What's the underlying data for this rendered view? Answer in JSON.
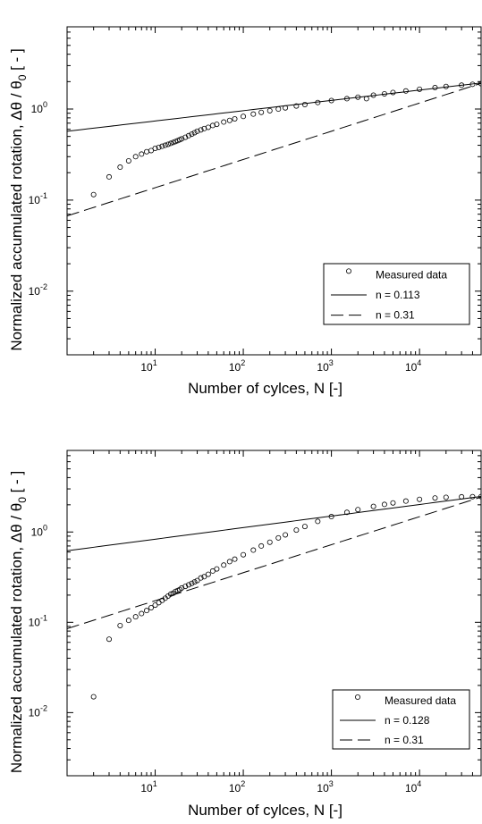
{
  "chart_data": [
    {
      "type": "scatter",
      "xlabel": "Number of cylces, N [-]",
      "ylabel": "Normalized accumulated rotation, Δθ / θ",
      "ylabel_subscript": "0",
      "ylabel_suffix": " [ - ]",
      "xscale": "log",
      "yscale": "log",
      "xlim": [
        1,
        50000
      ],
      "ylim": [
        0.002,
        8
      ],
      "grid": false,
      "legend_position": "bottom-right",
      "x_ticks": [
        {
          "value": 10,
          "base": "10",
          "exp": "1"
        },
        {
          "value": 100,
          "base": "10",
          "exp": "2"
        },
        {
          "value": 1000,
          "base": "10",
          "exp": "3"
        },
        {
          "value": 10000,
          "base": "10",
          "exp": "4"
        }
      ],
      "y_ticks": [
        {
          "value": 0.01,
          "base": "10",
          "exp": "-2"
        },
        {
          "value": 0.1,
          "base": "10",
          "exp": "-1"
        },
        {
          "value": 1,
          "base": "10",
          "exp": "0"
        }
      ],
      "series": [
        {
          "name": "Measured data",
          "kind": "markers",
          "x": [
            2,
            3,
            4,
            5,
            6,
            7,
            8,
            9,
            10,
            11,
            12,
            13,
            14,
            15,
            16,
            17,
            18,
            19,
            20,
            22,
            24,
            26,
            28,
            30,
            33,
            36,
            40,
            45,
            50,
            60,
            70,
            80,
            100,
            130,
            160,
            200,
            250,
            300,
            400,
            500,
            700,
            1000,
            1500,
            2000,
            2500,
            3000,
            4000,
            5000,
            7000,
            10000,
            15000,
            20000,
            30000,
            40000,
            50000
          ],
          "y": [
            0.115,
            0.18,
            0.23,
            0.27,
            0.3,
            0.32,
            0.34,
            0.35,
            0.37,
            0.38,
            0.39,
            0.4,
            0.41,
            0.42,
            0.43,
            0.44,
            0.45,
            0.46,
            0.47,
            0.49,
            0.51,
            0.53,
            0.55,
            0.57,
            0.59,
            0.61,
            0.63,
            0.66,
            0.68,
            0.72,
            0.75,
            0.78,
            0.83,
            0.88,
            0.92,
            0.96,
            1.0,
            1.03,
            1.08,
            1.12,
            1.18,
            1.24,
            1.3,
            1.35,
            1.3,
            1.42,
            1.47,
            1.52,
            1.58,
            1.65,
            1.72,
            1.77,
            1.83,
            1.87,
            1.9
          ]
        },
        {
          "name": "n = 0.113",
          "kind": "solid",
          "a": 0.57,
          "n": 0.113
        },
        {
          "name": "n = 0.31",
          "kind": "dashed",
          "a": 0.067,
          "n": 0.31
        }
      ]
    },
    {
      "type": "scatter",
      "xlabel": "Number of cylces, N [-]",
      "ylabel": "Normalized accumulated rotation, Δθ / θ",
      "ylabel_subscript": "0",
      "ylabel_suffix": " [ - ]",
      "xscale": "log",
      "yscale": "log",
      "xlim": [
        1,
        50000
      ],
      "ylim": [
        0.002,
        8
      ],
      "grid": false,
      "legend_position": "bottom-right",
      "x_ticks": [
        {
          "value": 10,
          "base": "10",
          "exp": "1"
        },
        {
          "value": 100,
          "base": "10",
          "exp": "2"
        },
        {
          "value": 1000,
          "base": "10",
          "exp": "3"
        },
        {
          "value": 10000,
          "base": "10",
          "exp": "4"
        }
      ],
      "y_ticks": [
        {
          "value": 0.01,
          "base": "10",
          "exp": "-2"
        },
        {
          "value": 0.1,
          "base": "10",
          "exp": "-1"
        },
        {
          "value": 1,
          "base": "10",
          "exp": "0"
        }
      ],
      "series": [
        {
          "name": "Measured data",
          "kind": "markers",
          "x": [
            2,
            3,
            4,
            5,
            6,
            7,
            8,
            9,
            10,
            11,
            12,
            13,
            14,
            15,
            16,
            17,
            18,
            19,
            20,
            22,
            24,
            26,
            28,
            30,
            33,
            36,
            40,
            45,
            50,
            60,
            70,
            80,
            100,
            130,
            160,
            200,
            250,
            300,
            400,
            500,
            700,
            1000,
            1500,
            2000,
            3000,
            4000,
            5000,
            7000,
            10000,
            15000,
            20000,
            30000,
            40000,
            50000
          ],
          "y": [
            0.015,
            0.065,
            0.092,
            0.105,
            0.115,
            0.125,
            0.135,
            0.145,
            0.155,
            0.165,
            0.175,
            0.185,
            0.195,
            0.205,
            0.21,
            0.22,
            0.225,
            0.23,
            0.24,
            0.25,
            0.26,
            0.27,
            0.28,
            0.29,
            0.31,
            0.32,
            0.34,
            0.37,
            0.39,
            0.43,
            0.47,
            0.5,
            0.56,
            0.63,
            0.7,
            0.77,
            0.86,
            0.93,
            1.05,
            1.15,
            1.31,
            1.48,
            1.65,
            1.77,
            1.92,
            2.02,
            2.1,
            2.2,
            2.3,
            2.38,
            2.42,
            2.45,
            2.46,
            2.47
          ]
        },
        {
          "name": "n = 0.128",
          "kind": "solid",
          "a": 0.62,
          "n": 0.128
        },
        {
          "name": "n = 0.31",
          "kind": "dashed",
          "a": 0.085,
          "n": 0.31
        }
      ]
    }
  ]
}
